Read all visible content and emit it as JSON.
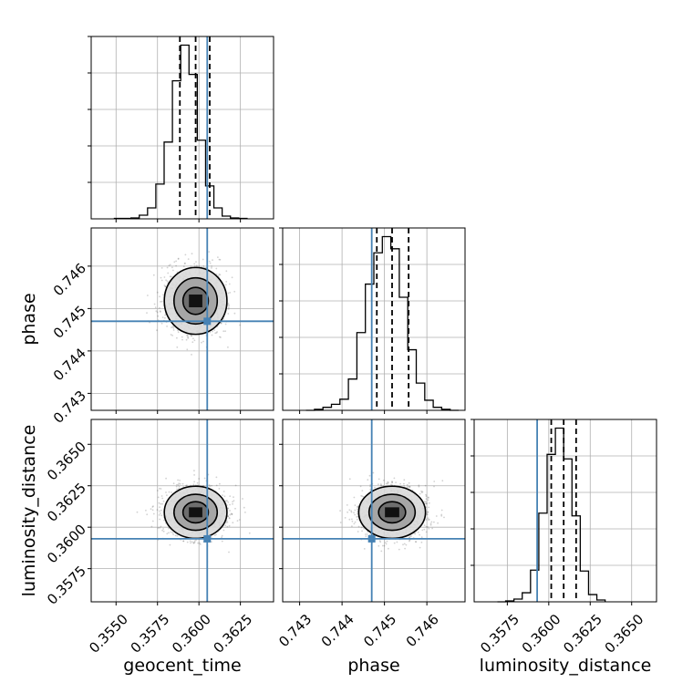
{
  "chart_data": {
    "type": "corner",
    "parameters": [
      "geocent_time",
      "phase",
      "luminosity_distance"
    ],
    "truths": {
      "geocent_time": 0.3605,
      "phase": 0.7447,
      "luminosity_distance": 0.3593
    },
    "quantiles": {
      "geocent_time": [
        0.35885,
        0.3598,
        0.36065
      ],
      "phase": [
        0.74482,
        0.74518,
        0.74557
      ],
      "luminosity_distance": [
        0.36015,
        0.3609,
        0.36165
      ]
    },
    "ranges": {
      "geocent_time": [
        0.3535,
        0.3645
      ],
      "phase": [
        0.7426,
        0.7469
      ],
      "luminosity_distance": [
        0.3555,
        0.3665
      ]
    },
    "ticks": {
      "geocent_time": [
        "0.3550",
        "0.3575",
        "0.3600",
        "0.3625"
      ],
      "phase": [
        "0.743",
        "0.744",
        "0.745",
        "0.746"
      ],
      "luminosity_distance": [
        "0.3575",
        "0.3600",
        "0.3625",
        "0.3650"
      ]
    },
    "histograms": {
      "geocent_time": {
        "edges": [
          0.3549,
          0.3554,
          0.3559,
          0.3564,
          0.3569,
          0.3574,
          0.3579,
          0.3584,
          0.3589,
          0.3594,
          0.3599,
          0.3604,
          0.3609,
          0.3614,
          0.3619,
          0.3624,
          0.3629
        ],
        "counts": [
          0.5,
          0.5,
          1,
          4,
          12,
          38,
          84,
          151,
          190,
          158,
          86,
          36,
          12,
          3,
          1,
          0.5
        ]
      },
      "phase": {
        "edges": [
          0.74315,
          0.74335,
          0.74355,
          0.74375,
          0.74395,
          0.74415,
          0.74435,
          0.74455,
          0.74475,
          0.74495,
          0.74515,
          0.74535,
          0.74555,
          0.74575,
          0.74595,
          0.74615,
          0.74635,
          0.74655,
          0.74675
        ],
        "counts": [
          0,
          1,
          3,
          6,
          11,
          31,
          77,
          125,
          156,
          172,
          160,
          112,
          60,
          27,
          10,
          3,
          1,
          0
        ]
      },
      "luminosity_distance": {
        "edges": [
          0.3569,
          0.3574,
          0.3579,
          0.3584,
          0.3589,
          0.3594,
          0.3599,
          0.3604,
          0.3609,
          0.3614,
          0.3619,
          0.3624,
          0.3629,
          0.3634
        ],
        "counts": [
          0,
          1,
          3,
          10,
          35,
          98,
          163,
          192,
          158,
          95,
          34,
          8,
          2
        ]
      }
    },
    "xlabels": [
      "geocent_time",
      "phase",
      "luminosity_distance"
    ],
    "ylabels": [
      "",
      "phase",
      "luminosity_distance"
    ],
    "truth_color": "#4682b4",
    "grid": true
  }
}
